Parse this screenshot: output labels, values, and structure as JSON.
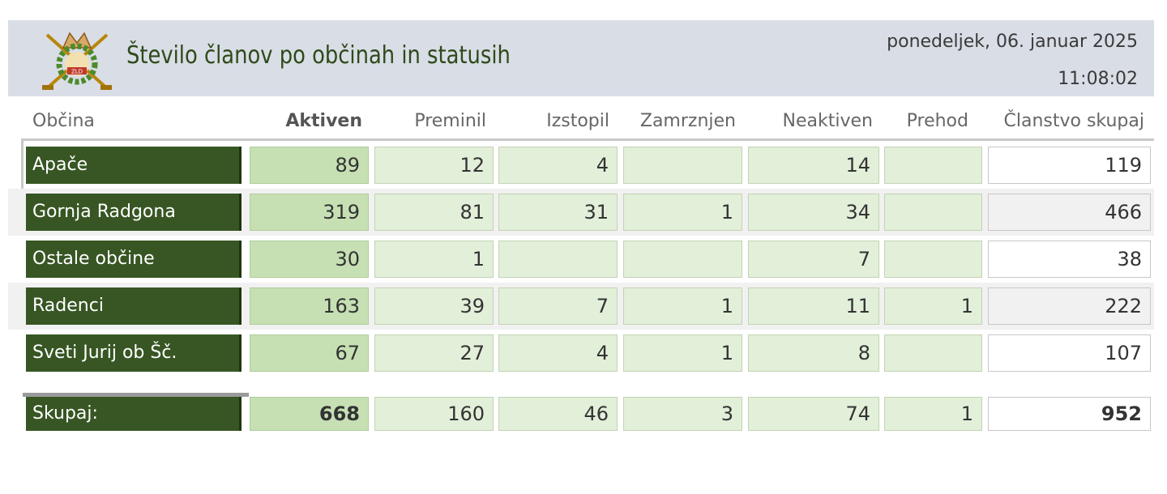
{
  "header": {
    "title": "Število članov po občinah in statusih",
    "date": "ponedeljek, 06. januar 2025",
    "time": "11:08:02",
    "logo_icon": "hunters-association-emblem-icon",
    "logo_text": "ZLD"
  },
  "columns": {
    "obcina": "Občina",
    "aktiven": "Aktiven",
    "preminil": "Preminil",
    "izstopil": "Izstopil",
    "zamrznjen": "Zamrznjen",
    "neaktiven": "Neaktiven",
    "prehod": "Prehod",
    "skupaj": "Članstvo skupaj"
  },
  "rows": [
    {
      "name": "Apače",
      "aktiven": "89",
      "preminil": "12",
      "izstopil": "4",
      "zamrznjen": "",
      "neaktiven": "14",
      "prehod": "",
      "skupaj": "119"
    },
    {
      "name": "Gornja Radgona",
      "aktiven": "319",
      "preminil": "81",
      "izstopil": "31",
      "zamrznjen": "1",
      "neaktiven": "34",
      "prehod": "",
      "skupaj": "466"
    },
    {
      "name": "Ostale občine",
      "aktiven": "30",
      "preminil": "1",
      "izstopil": "",
      "zamrznjen": "",
      "neaktiven": "7",
      "prehod": "",
      "skupaj": "38"
    },
    {
      "name": "Radenci",
      "aktiven": "163",
      "preminil": "39",
      "izstopil": "7",
      "zamrznjen": "1",
      "neaktiven": "11",
      "prehod": "1",
      "skupaj": "222"
    },
    {
      "name": "Sveti Jurij ob Šč.",
      "aktiven": "67",
      "preminil": "27",
      "izstopil": "4",
      "zamrznjen": "1",
      "neaktiven": "8",
      "prehod": "",
      "skupaj": "107"
    }
  ],
  "total": {
    "name": "Skupaj:",
    "aktiven": "668",
    "preminil": "160",
    "izstopil": "46",
    "zamrznjen": "3",
    "neaktiven": "74",
    "prehod": "1",
    "skupaj": "952"
  },
  "colors": {
    "name_bg": "#375623",
    "active_bg": "#c6e0b4",
    "cell_bg": "#e2efd9",
    "header_bg": "#d9dde6"
  }
}
